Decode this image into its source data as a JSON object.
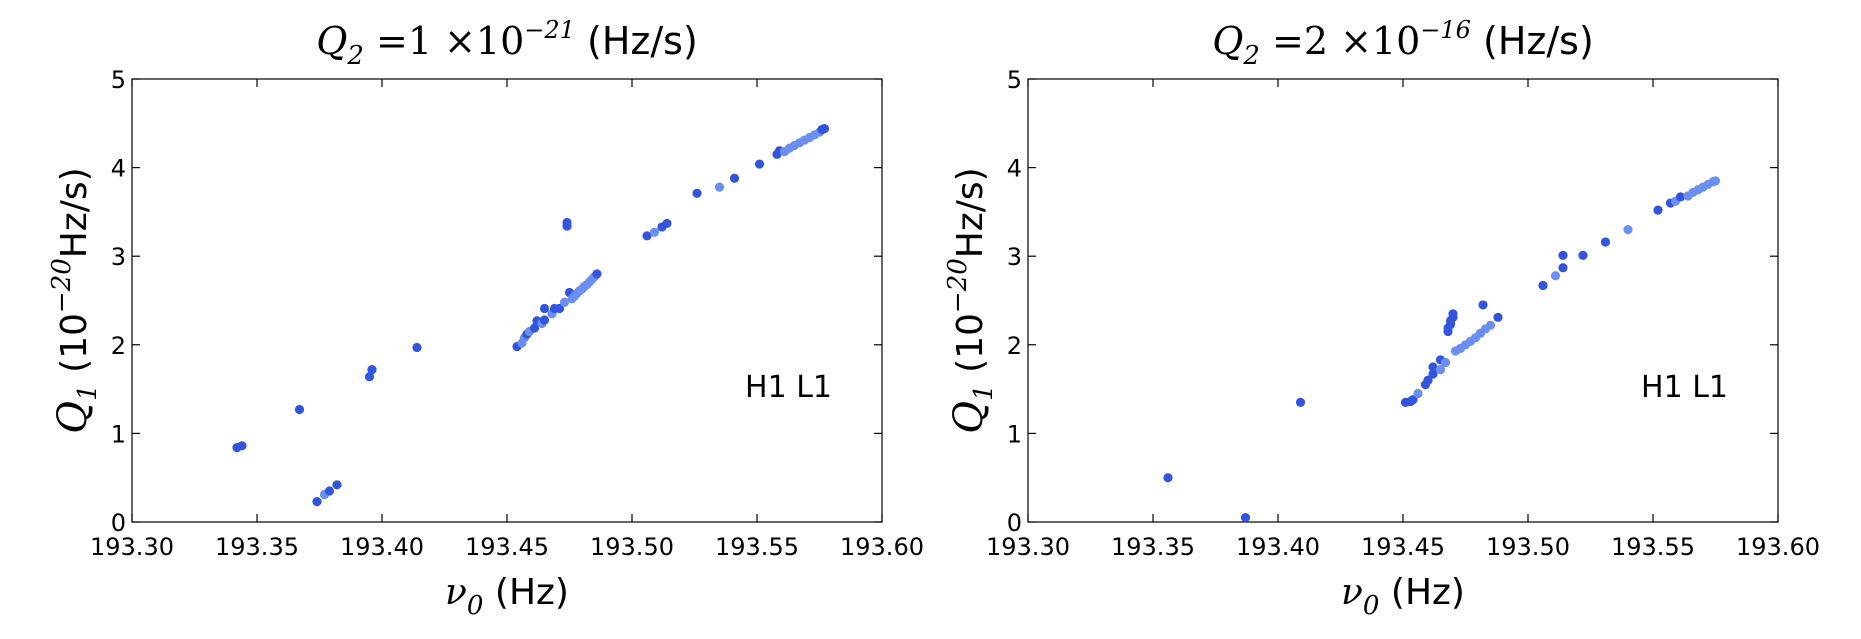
{
  "chart_data": [
    {
      "type": "scatter",
      "title": {
        "var": "Q",
        "sub": "2",
        "eq": " =",
        "mant": "1",
        "times": " ×10",
        "exp": "−21",
        "unit": "(Hz/s)"
      },
      "xlabel": {
        "var": "ν",
        "sub": "0",
        "unit": "(Hz)"
      },
      "ylabel": {
        "var": "Q",
        "sub": "1",
        "pre": "(10",
        "exp": "−20",
        "unit": "Hz/s)"
      },
      "annotation": "H1 L1",
      "xlim": [
        193.3,
        193.6
      ],
      "ylim": [
        0,
        5
      ],
      "xticks": [
        "193.30",
        "193.35",
        "193.40",
        "193.45",
        "193.50",
        "193.55",
        "193.60"
      ],
      "yticks": [
        "0",
        "1",
        "2",
        "3",
        "4",
        "5"
      ],
      "grid": false,
      "colors": {
        "dark": "#3355dd",
        "light": "#6b8ff0"
      },
      "points": [
        {
          "x": 193.342,
          "y": 0.84,
          "c": 0
        },
        {
          "x": 193.344,
          "y": 0.86,
          "c": 0
        },
        {
          "x": 193.367,
          "y": 1.27,
          "c": 0
        },
        {
          "x": 193.374,
          "y": 0.23,
          "c": 0
        },
        {
          "x": 193.377,
          "y": 0.31,
          "c": 1
        },
        {
          "x": 193.379,
          "y": 0.35,
          "c": 0
        },
        {
          "x": 193.382,
          "y": 0.42,
          "c": 0
        },
        {
          "x": 193.395,
          "y": 1.64,
          "c": 0
        },
        {
          "x": 193.396,
          "y": 1.72,
          "c": 0
        },
        {
          "x": 193.414,
          "y": 1.97,
          "c": 0
        },
        {
          "x": 193.454,
          "y": 1.98,
          "c": 0
        },
        {
          "x": 193.456,
          "y": 2.02,
          "c": 1
        },
        {
          "x": 193.457,
          "y": 2.08,
          "c": 1
        },
        {
          "x": 193.458,
          "y": 2.12,
          "c": 0
        },
        {
          "x": 193.459,
          "y": 2.15,
          "c": 1
        },
        {
          "x": 193.461,
          "y": 2.19,
          "c": 0
        },
        {
          "x": 193.462,
          "y": 2.27,
          "c": 0
        },
        {
          "x": 193.464,
          "y": 2.24,
          "c": 1
        },
        {
          "x": 193.465,
          "y": 2.28,
          "c": 0
        },
        {
          "x": 193.465,
          "y": 2.41,
          "c": 0
        },
        {
          "x": 193.468,
          "y": 2.35,
          "c": 1
        },
        {
          "x": 193.469,
          "y": 2.41,
          "c": 0
        },
        {
          "x": 193.471,
          "y": 2.41,
          "c": 0
        },
        {
          "x": 193.473,
          "y": 2.48,
          "c": 1
        },
        {
          "x": 193.474,
          "y": 3.34,
          "c": 0
        },
        {
          "x": 193.474,
          "y": 3.38,
          "c": 0
        },
        {
          "x": 193.475,
          "y": 2.59,
          "c": 0
        },
        {
          "x": 193.476,
          "y": 2.52,
          "c": 1
        },
        {
          "x": 193.477,
          "y": 2.55,
          "c": 1
        },
        {
          "x": 193.478,
          "y": 2.58,
          "c": 1
        },
        {
          "x": 193.479,
          "y": 2.61,
          "c": 1
        },
        {
          "x": 193.48,
          "y": 2.63,
          "c": 1
        },
        {
          "x": 193.481,
          "y": 2.66,
          "c": 1
        },
        {
          "x": 193.482,
          "y": 2.68,
          "c": 1
        },
        {
          "x": 193.483,
          "y": 2.71,
          "c": 1
        },
        {
          "x": 193.484,
          "y": 2.74,
          "c": 1
        },
        {
          "x": 193.485,
          "y": 2.77,
          "c": 1
        },
        {
          "x": 193.486,
          "y": 2.8,
          "c": 0
        },
        {
          "x": 193.506,
          "y": 3.23,
          "c": 0
        },
        {
          "x": 193.509,
          "y": 3.27,
          "c": 1
        },
        {
          "x": 193.512,
          "y": 3.33,
          "c": 0
        },
        {
          "x": 193.514,
          "y": 3.37,
          "c": 0
        },
        {
          "x": 193.526,
          "y": 3.71,
          "c": 0
        },
        {
          "x": 193.535,
          "y": 3.78,
          "c": 1
        },
        {
          "x": 193.541,
          "y": 3.88,
          "c": 0
        },
        {
          "x": 193.551,
          "y": 4.04,
          "c": 0
        },
        {
          "x": 193.558,
          "y": 4.15,
          "c": 0
        },
        {
          "x": 193.559,
          "y": 4.19,
          "c": 0
        },
        {
          "x": 193.561,
          "y": 4.18,
          "c": 1
        },
        {
          "x": 193.563,
          "y": 4.22,
          "c": 1
        },
        {
          "x": 193.565,
          "y": 4.25,
          "c": 1
        },
        {
          "x": 193.567,
          "y": 4.28,
          "c": 1
        },
        {
          "x": 193.569,
          "y": 4.31,
          "c": 1
        },
        {
          "x": 193.571,
          "y": 4.34,
          "c": 1
        },
        {
          "x": 193.573,
          "y": 4.37,
          "c": 1
        },
        {
          "x": 193.575,
          "y": 4.4,
          "c": 1
        },
        {
          "x": 193.576,
          "y": 4.43,
          "c": 0
        },
        {
          "x": 193.577,
          "y": 4.44,
          "c": 0
        }
      ]
    },
    {
      "type": "scatter",
      "title": {
        "var": "Q",
        "sub": "2",
        "eq": " =",
        "mant": "2",
        "times": " ×10",
        "exp": "−16",
        "unit": "(Hz/s)"
      },
      "xlabel": {
        "var": "ν",
        "sub": "0",
        "unit": "(Hz)"
      },
      "ylabel": {
        "var": "Q",
        "sub": "1",
        "pre": "(10",
        "exp": "−20",
        "unit": "Hz/s)"
      },
      "annotation": "H1 L1",
      "xlim": [
        193.3,
        193.6
      ],
      "ylim": [
        0,
        5
      ],
      "xticks": [
        "193.30",
        "193.35",
        "193.40",
        "193.45",
        "193.50",
        "193.55",
        "193.60"
      ],
      "yticks": [
        "0",
        "1",
        "2",
        "3",
        "4",
        "5"
      ],
      "grid": false,
      "colors": {
        "dark": "#3355dd",
        "light": "#6b8ff0"
      },
      "points": [
        {
          "x": 193.356,
          "y": 0.5,
          "c": 0
        },
        {
          "x": 193.387,
          "y": 0.05,
          "c": 0
        },
        {
          "x": 193.409,
          "y": 1.35,
          "c": 0
        },
        {
          "x": 193.451,
          "y": 1.35,
          "c": 0
        },
        {
          "x": 193.453,
          "y": 1.36,
          "c": 0
        },
        {
          "x": 193.454,
          "y": 1.38,
          "c": 0
        },
        {
          "x": 193.456,
          "y": 1.45,
          "c": 1
        },
        {
          "x": 193.459,
          "y": 1.55,
          "c": 0
        },
        {
          "x": 193.46,
          "y": 1.6,
          "c": 0
        },
        {
          "x": 193.462,
          "y": 1.67,
          "c": 0
        },
        {
          "x": 193.462,
          "y": 1.75,
          "c": 0
        },
        {
          "x": 193.465,
          "y": 1.72,
          "c": 1
        },
        {
          "x": 193.465,
          "y": 1.83,
          "c": 0
        },
        {
          "x": 193.467,
          "y": 1.8,
          "c": 1
        },
        {
          "x": 193.468,
          "y": 2.15,
          "c": 0
        },
        {
          "x": 193.468,
          "y": 2.19,
          "c": 0
        },
        {
          "x": 193.469,
          "y": 2.23,
          "c": 0
        },
        {
          "x": 193.469,
          "y": 2.27,
          "c": 0
        },
        {
          "x": 193.47,
          "y": 2.31,
          "c": 0
        },
        {
          "x": 193.47,
          "y": 2.35,
          "c": 0
        },
        {
          "x": 193.471,
          "y": 1.93,
          "c": 1
        },
        {
          "x": 193.473,
          "y": 1.96,
          "c": 1
        },
        {
          "x": 193.475,
          "y": 2.0,
          "c": 1
        },
        {
          "x": 193.477,
          "y": 2.04,
          "c": 1
        },
        {
          "x": 193.479,
          "y": 2.08,
          "c": 1
        },
        {
          "x": 193.481,
          "y": 2.13,
          "c": 1
        },
        {
          "x": 193.482,
          "y": 2.45,
          "c": 0
        },
        {
          "x": 193.483,
          "y": 2.18,
          "c": 1
        },
        {
          "x": 193.485,
          "y": 2.22,
          "c": 1
        },
        {
          "x": 193.488,
          "y": 2.31,
          "c": 0
        },
        {
          "x": 193.506,
          "y": 2.67,
          "c": 0
        },
        {
          "x": 193.511,
          "y": 2.78,
          "c": 1
        },
        {
          "x": 193.514,
          "y": 2.87,
          "c": 0
        },
        {
          "x": 193.514,
          "y": 3.01,
          "c": 0
        },
        {
          "x": 193.522,
          "y": 3.01,
          "c": 0
        },
        {
          "x": 193.531,
          "y": 3.16,
          "c": 0
        },
        {
          "x": 193.54,
          "y": 3.3,
          "c": 1
        },
        {
          "x": 193.552,
          "y": 3.52,
          "c": 0
        },
        {
          "x": 193.557,
          "y": 3.6,
          "c": 0
        },
        {
          "x": 193.559,
          "y": 3.62,
          "c": 1
        },
        {
          "x": 193.561,
          "y": 3.67,
          "c": 0
        },
        {
          "x": 193.564,
          "y": 3.68,
          "c": 1
        },
        {
          "x": 193.566,
          "y": 3.72,
          "c": 1
        },
        {
          "x": 193.568,
          "y": 3.75,
          "c": 1
        },
        {
          "x": 193.57,
          "y": 3.78,
          "c": 1
        },
        {
          "x": 193.572,
          "y": 3.81,
          "c": 1
        },
        {
          "x": 193.574,
          "y": 3.84,
          "c": 1
        },
        {
          "x": 193.575,
          "y": 3.85,
          "c": 1
        }
      ]
    }
  ]
}
